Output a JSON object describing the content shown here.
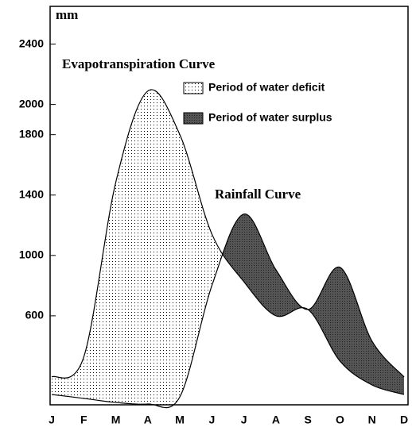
{
  "chart_data": {
    "type": "line",
    "y_label": "mm",
    "categories": [
      "J",
      "F",
      "M",
      "A",
      "M",
      "J",
      "J",
      "A",
      "S",
      "O",
      "N",
      "D"
    ],
    "series": [
      {
        "name": "Evapotranspiration Curve",
        "color": "#000000",
        "values": [
          195,
          326,
          1484,
          2089,
          1800,
          1142,
          826,
          600,
          642,
          300,
          142,
          79
        ]
      },
      {
        "name": "Rainfall Curve",
        "color": "#000000",
        "values": [
          79,
          53,
          26,
          16,
          63,
          800,
          1274,
          905,
          642,
          921,
          432,
          195
        ]
      }
    ],
    "shading": [
      {
        "name": "Period of water deficit",
        "color": "#ffffff"
      },
      {
        "name": "Period of water surplus",
        "color": "#5a5a5a"
      }
    ],
    "ylim": [
      0,
      2650
    ],
    "yticks": [
      600,
      1000,
      1400,
      1800,
      2000,
      2400
    ]
  }
}
